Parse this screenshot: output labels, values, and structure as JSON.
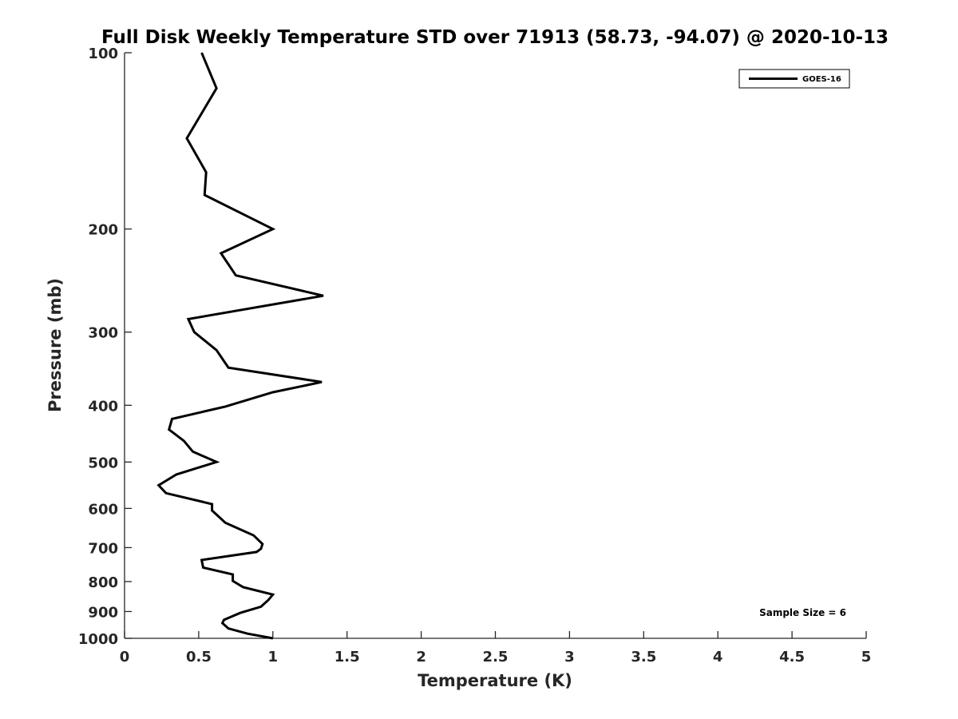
{
  "chart_data": {
    "type": "line",
    "title": "Full Disk Weekly Temperature STD over 71913 (58.73, -94.07) @ 2020-10-13",
    "xlabel": "Temperature (K)",
    "ylabel": "Pressure (mb)",
    "xlim": [
      0,
      5
    ],
    "ylim": [
      100,
      1000
    ],
    "yscale": "log",
    "yreversed": true,
    "grid": false,
    "legend_location": "top-right",
    "xticks": [
      "0",
      "0.5",
      "1",
      "1.5",
      "2",
      "2.5",
      "3",
      "3.5",
      "4",
      "4.5",
      "5"
    ],
    "yticks": [
      "100",
      "200",
      "300",
      "400",
      "500",
      "600",
      "700",
      "800",
      "900",
      "1000"
    ],
    "series": [
      {
        "name": "GOES-16",
        "color": "#000000",
        "x": [
          0.52,
          0.62,
          0.42,
          0.55,
          0.54,
          1.0,
          0.65,
          0.75,
          1.34,
          0.43,
          0.47,
          0.62,
          0.7,
          1.33,
          1.0,
          0.68,
          0.32,
          0.3,
          0.4,
          0.46,
          0.62,
          0.35,
          0.23,
          0.28,
          0.59,
          0.59,
          0.68,
          0.87,
          0.93,
          0.92,
          0.89,
          0.52,
          0.53,
          0.73,
          0.73,
          0.8,
          1.0,
          0.97,
          0.92,
          0.78,
          0.67,
          0.66,
          0.7,
          0.83,
          1.0
        ],
        "y": [
          100,
          115,
          140,
          160,
          175,
          200,
          220,
          240,
          260,
          285,
          300,
          322,
          345,
          365,
          380,
          402,
          422,
          440,
          460,
          480,
          500,
          525,
          548,
          565,
          590,
          605,
          635,
          667,
          690,
          703,
          712,
          735,
          757,
          778,
          798,
          818,
          842,
          860,
          883,
          905,
          930,
          942,
          962,
          982,
          1000
        ]
      }
    ],
    "annotations": [
      "Sample Size = 6"
    ]
  }
}
